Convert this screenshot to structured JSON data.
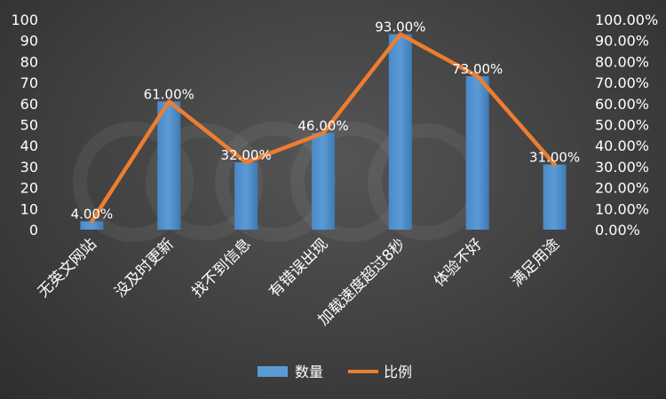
{
  "chart_data": {
    "type": "bar",
    "categories": [
      "无英文网站",
      "没及时更新",
      "找不到信息",
      "有错误出现",
      "加载速度超过8秒",
      "体验不好",
      "满足用途"
    ],
    "series": [
      {
        "name": "数量",
        "type": "bar",
        "axis": "left",
        "values": [
          4,
          61,
          32,
          46,
          93,
          73,
          31
        ]
      },
      {
        "name": "比例",
        "type": "line",
        "axis": "right",
        "values": [
          4,
          61,
          32,
          46,
          93,
          73,
          31
        ],
        "data_labels": [
          "4.00%",
          "61.00%",
          "32.00%",
          "46.00%",
          "93.00%",
          "73.00%",
          "31.00%"
        ]
      }
    ],
    "ylim_left": [
      0,
      100
    ],
    "yticks_left": [
      "0",
      "10",
      "20",
      "30",
      "40",
      "50",
      "60",
      "70",
      "80",
      "90",
      "100"
    ],
    "ylim_right": [
      0,
      100
    ],
    "yticks_right": [
      "0.00%",
      "10.00%",
      "20.00%",
      "30.00%",
      "40.00%",
      "50.00%",
      "60.00%",
      "70.00%",
      "80.00%",
      "90.00%",
      "100.00%"
    ],
    "grid": false,
    "legend_position": "bottom",
    "colors": {
      "bar": "#5b9bd5",
      "line": "#ed7d31",
      "text": "#ffffff",
      "background": "#404040"
    }
  }
}
